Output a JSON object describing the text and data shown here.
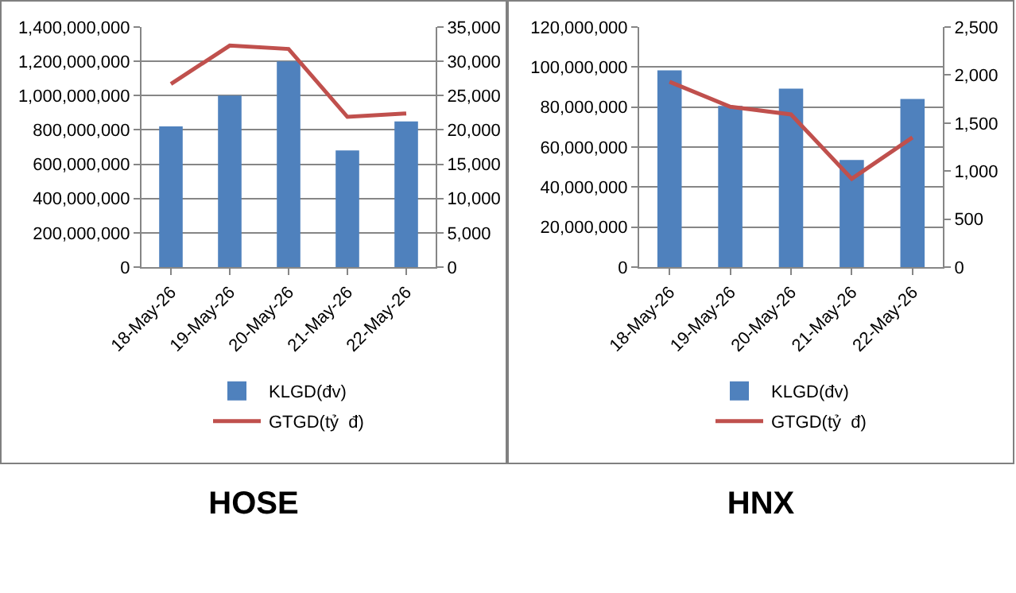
{
  "chart_data": [
    {
      "type": "bar",
      "title": "HOSE",
      "categories": [
        "18-May-26",
        "19-May-26",
        "20-May-26",
        "21-May-26",
        "22-May-26"
      ],
      "series": [
        {
          "name": "KLGD(đv)",
          "color": "#4f81bd",
          "values": [
            820000000,
            1000000000,
            1200000000,
            680000000,
            850000000
          ]
        },
        {
          "name": "GTGD(tỷ  đ)",
          "type": "line",
          "axis": "y2",
          "color": "#c0504d",
          "values": [
            26700,
            32300,
            31800,
            21900,
            22400
          ]
        }
      ],
      "ylim": [
        0,
        1400000000
      ],
      "yticks": [
        {
          "value": 0,
          "label": "0"
        },
        {
          "value": 200000000,
          "label": "200,000,000"
        },
        {
          "value": 400000000,
          "label": "400,000,000"
        },
        {
          "value": 600000000,
          "label": "600,000,000"
        },
        {
          "value": 800000000,
          "label": "800,000,000"
        },
        {
          "value": 1000000000,
          "label": "1,000,000,000"
        },
        {
          "value": 1200000000,
          "label": "1,200,000,000"
        },
        {
          "value": 1400000000,
          "label": "1,400,000,000"
        }
      ],
      "y2lim": [
        0,
        35000
      ],
      "y2ticks": [
        {
          "value": 0,
          "label": "0"
        },
        {
          "value": 5000,
          "label": "5,000"
        },
        {
          "value": 10000,
          "label": "10,000"
        },
        {
          "value": 15000,
          "label": "15,000"
        },
        {
          "value": 20000,
          "label": "20,000"
        },
        {
          "value": 25000,
          "label": "25,000"
        },
        {
          "value": 30000,
          "label": "30,000"
        },
        {
          "value": 35000,
          "label": "35,000"
        }
      ],
      "grid": "y",
      "legend": "bottom"
    },
    {
      "type": "bar",
      "title": "HNX",
      "categories": [
        "18-May-26",
        "19-May-26",
        "20-May-26",
        "21-May-26",
        "22-May-26"
      ],
      "series": [
        {
          "name": "KLGD(đv)",
          "color": "#4f81bd",
          "values": [
            98300000,
            80600000,
            89200000,
            53500000,
            84000000
          ]
        },
        {
          "name": "GTGD(tỷ  đ)",
          "type": "line",
          "axis": "y2",
          "color": "#c0504d",
          "values": [
            1930,
            1670,
            1590,
            920,
            1350
          ]
        }
      ],
      "ylim": [
        0,
        120000000
      ],
      "yticks": [
        {
          "value": 0,
          "label": "0"
        },
        {
          "value": 20000000,
          "label": "20,000,000"
        },
        {
          "value": 40000000,
          "label": "40,000,000"
        },
        {
          "value": 60000000,
          "label": "60,000,000"
        },
        {
          "value": 80000000,
          "label": "80,000,000"
        },
        {
          "value": 100000000,
          "label": "100,000,000"
        },
        {
          "value": 120000000,
          "label": "120,000,000"
        }
      ],
      "y2lim": [
        0,
        2500
      ],
      "y2ticks": [
        {
          "value": 0,
          "label": "0"
        },
        {
          "value": 500,
          "label": "500"
        },
        {
          "value": 1000,
          "label": "1,000"
        },
        {
          "value": 1500,
          "label": "1,500"
        },
        {
          "value": 2000,
          "label": "2,000"
        },
        {
          "value": 2500,
          "label": "2,500"
        }
      ],
      "grid": "y",
      "legend": "bottom"
    }
  ]
}
